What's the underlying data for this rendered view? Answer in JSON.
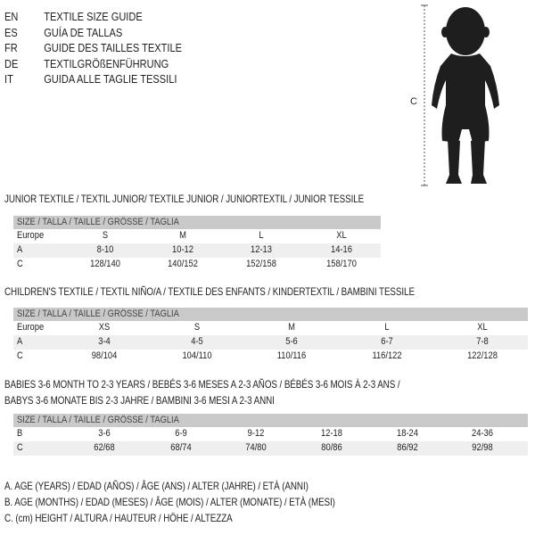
{
  "languages": [
    {
      "code": "EN",
      "title": "TEXTILE SIZE GUIDE"
    },
    {
      "code": "ES",
      "title": "GUÍA DE TALLAS"
    },
    {
      "code": "FR",
      "title": "GUIDE DES TAILLES TEXTILE"
    },
    {
      "code": "DE",
      "title": "TEXTILGRÖßENFÜHRUNG"
    },
    {
      "code": "IT",
      "title": "GUIDA ALLE TAGLIE TESSILI"
    }
  ],
  "figure": {
    "height_label": "C"
  },
  "size_header": "SIZE / TALLA / TAILLE / GRÖSSE / TAGLIA",
  "junior": {
    "heading": "JUNIOR TEXTILE / TEXTIL JUNIOR/ TEXTILE JUNIOR / JUNIORTEXTIL / JUNIOR TESSILE",
    "rows": [
      {
        "label": "Europe",
        "values": [
          "S",
          "M",
          "L",
          "XL"
        ]
      },
      {
        "label": "A",
        "values": [
          "8-10",
          "10-12",
          "12-13",
          "14-16"
        ]
      },
      {
        "label": "C",
        "values": [
          "128/140",
          "140/152",
          "152/158",
          "158/170"
        ]
      }
    ]
  },
  "children": {
    "heading": "CHILDREN'S TEXTILE / TEXTIL NIÑO/A / TEXTILE DES ENFANTS / KINDERTEXTIL / BAMBINI TESSILE",
    "rows": [
      {
        "label": "Europe",
        "values": [
          "XS",
          "S",
          "M",
          "L",
          "XL"
        ]
      },
      {
        "label": "A",
        "values": [
          "3-4",
          "4-5",
          "5-6",
          "6-7",
          "7-8"
        ]
      },
      {
        "label": "C",
        "values": [
          "98/104",
          "104/110",
          "110/116",
          "116/122",
          "122/128"
        ]
      }
    ]
  },
  "babies": {
    "heading_1": "BABIES 3-6 MONTH TO 2-3 YEARS / BEBÉS 3-6 MESES A 2-3 AÑOS / BÉBÉS 3-6 MOIS À 2-3 ANS /",
    "heading_2": "BABYS 3-6 MONATE BIS 2-3 JAHRE / BAMBINI 3-6 MESI A 2-3 ANNI",
    "rows": [
      {
        "label": "B",
        "values": [
          "3-6",
          "6-9",
          "9-12",
          "12-18",
          "18-24",
          "24-36"
        ]
      },
      {
        "label": "C",
        "values": [
          "62/68",
          "68/74",
          "74/80",
          "80/86",
          "86/92",
          "92/98"
        ]
      }
    ]
  },
  "legend": [
    "A. AGE (YEARS) / EDAD (AÑOS) / ÂGE (ANS) / ALTER (JAHRE) / ETÀ (ANNI)",
    "B. AGE (MONTHS) / EDAD (MESES) / ÂGE (MOIS) / ALTER (MONATE) / ETÀ (MESI)",
    "C. (cm) HEIGHT / ALTURA / HAUTEUR / HÖHE / ALTEZZA"
  ]
}
